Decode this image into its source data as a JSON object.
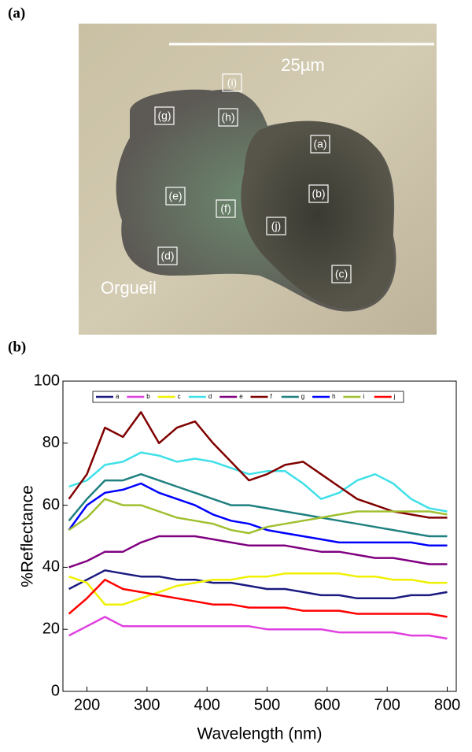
{
  "figure": {
    "panel_a": "(a)",
    "panel_b": "(b)",
    "scale_bar": "25µm",
    "sample": "Orgueil",
    "spot_labels": [
      "(i)",
      "(g)",
      "(h)",
      "(a)",
      "(e)",
      "(b)",
      "(f)",
      "(j)",
      "(d)",
      "(c)"
    ]
  },
  "chart_data": {
    "type": "line",
    "x_label": "Wavelength (nm)",
    "y_label": "%Reflectance",
    "xlim": [
      160,
      815
    ],
    "ylim": [
      0,
      100
    ],
    "xticks": [
      200,
      300,
      400,
      500,
      600,
      700,
      800
    ],
    "yticks": [
      0,
      20,
      40,
      60,
      80,
      100
    ],
    "x": [
      170,
      200,
      230,
      260,
      290,
      320,
      350,
      380,
      410,
      440,
      470,
      500,
      530,
      560,
      590,
      620,
      650,
      680,
      710,
      740,
      770,
      800
    ],
    "series": [
      {
        "name": "a",
        "color": "#1a1a80",
        "values": [
          33,
          36,
          39,
          38,
          37,
          37,
          36,
          36,
          35,
          35,
          34,
          33,
          33,
          32,
          31,
          31,
          30,
          30,
          30,
          31,
          31,
          32
        ]
      },
      {
        "name": "b",
        "color": "#e040e0",
        "values": [
          18,
          21,
          24,
          21,
          21,
          21,
          21,
          21,
          21,
          21,
          21,
          20,
          20,
          20,
          20,
          19,
          19,
          19,
          19,
          18,
          18,
          17
        ]
      },
      {
        "name": "c",
        "color": "#f0f000",
        "values": [
          37,
          35,
          28,
          28,
          30,
          32,
          34,
          35,
          36,
          36,
          37,
          37,
          38,
          38,
          38,
          38,
          37,
          37,
          36,
          36,
          35,
          35
        ]
      },
      {
        "name": "d",
        "color": "#40e0e8",
        "values": [
          66,
          68,
          73,
          74,
          77,
          76,
          74,
          75,
          74,
          72,
          70,
          71,
          71,
          67,
          62,
          64,
          68,
          70,
          67,
          62,
          59,
          58
        ]
      },
      {
        "name": "e",
        "color": "#800080",
        "values": [
          40,
          42,
          45,
          45,
          48,
          50,
          50,
          50,
          49,
          48,
          47,
          47,
          47,
          46,
          45,
          45,
          44,
          43,
          43,
          42,
          41,
          41
        ]
      },
      {
        "name": "f",
        "color": "#800000",
        "values": [
          62,
          70,
          85,
          82,
          90,
          80,
          85,
          87,
          80,
          74,
          68,
          70,
          73,
          74,
          70,
          66,
          62,
          60,
          58,
          57,
          56,
          56
        ]
      },
      {
        "name": "g",
        "color": "#208080",
        "values": [
          55,
          62,
          68,
          68,
          70,
          68,
          66,
          64,
          62,
          60,
          60,
          59,
          58,
          57,
          56,
          55,
          54,
          53,
          52,
          51,
          50,
          50
        ]
      },
      {
        "name": "h",
        "color": "#0000ff",
        "values": [
          52,
          60,
          64,
          65,
          67,
          64,
          62,
          60,
          57,
          55,
          54,
          52,
          51,
          50,
          49,
          48,
          48,
          48,
          48,
          48,
          47,
          47
        ]
      },
      {
        "name": "i",
        "color": "#a0c030",
        "values": [
          52,
          56,
          62,
          60,
          60,
          58,
          56,
          55,
          54,
          52,
          51,
          53,
          54,
          55,
          56,
          57,
          58,
          58,
          58,
          58,
          58,
          57
        ]
      },
      {
        "name": "j",
        "color": "#ff0000",
        "values": [
          25,
          30,
          36,
          33,
          32,
          31,
          30,
          29,
          28,
          28,
          27,
          27,
          27,
          26,
          26,
          26,
          25,
          25,
          25,
          25,
          25,
          24
        ]
      }
    ]
  }
}
